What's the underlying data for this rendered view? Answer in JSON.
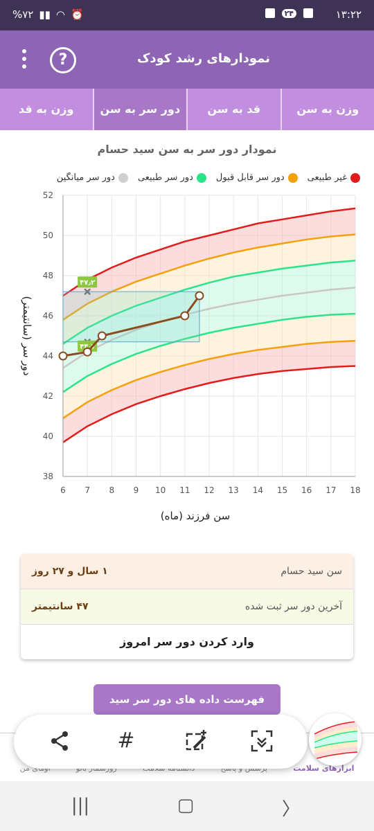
{
  "status_bar": {
    "time": "۱۳:۲۲",
    "badge": "۲۴",
    "battery": "%۷۲"
  },
  "header": {
    "title": "نمودارهای رشد کودک",
    "help_glyph": "?"
  },
  "tabs": [
    {
      "label": "وزن به سن",
      "active": false
    },
    {
      "label": "قد به سن",
      "active": false
    },
    {
      "label": "دور سر به سن",
      "active": true
    },
    {
      "label": "وزن به قد",
      "active": false
    }
  ],
  "chart_data": {
    "type": "line",
    "title": "نمودار دور سر به سن سید حسام",
    "xlabel": "سن فرزند (ماه)",
    "ylabel": "دور سر (سانتیمتر)",
    "xlim": [
      6,
      18
    ],
    "ylim": [
      38,
      52
    ],
    "x_ticks": [
      6,
      7,
      8,
      9,
      10,
      11,
      12,
      13,
      14,
      15,
      16,
      17,
      18
    ],
    "y_ticks": [
      38,
      40,
      42,
      44,
      46,
      48,
      50,
      52
    ],
    "legend": [
      {
        "name": "غیر طبیعی",
        "color": "#e21b1b"
      },
      {
        "name": "دور سر قابل قبول",
        "color": "#f5a10c"
      },
      {
        "name": "دور سر طبیعی",
        "color": "#2be389"
      },
      {
        "name": "دور سر میانگین",
        "color": "#cfcfcf"
      }
    ],
    "reference_x": [
      6,
      7,
      8,
      9,
      10,
      11,
      12,
      13,
      14,
      15,
      16,
      17,
      18
    ],
    "reference_series": [
      {
        "name": "upper_red",
        "color": "#e21b1b",
        "values": [
          47.0,
          47.8,
          48.4,
          48.9,
          49.3,
          49.7,
          50.0,
          50.3,
          50.6,
          50.8,
          51.0,
          51.2,
          51.35
        ]
      },
      {
        "name": "upper_orange",
        "color": "#f5a10c",
        "values": [
          45.8,
          46.6,
          47.2,
          47.7,
          48.1,
          48.5,
          48.85,
          49.15,
          49.4,
          49.6,
          49.8,
          49.95,
          50.05
        ]
      },
      {
        "name": "upper_green",
        "color": "#2be389",
        "values": [
          44.6,
          45.4,
          46.0,
          46.5,
          46.9,
          47.3,
          47.65,
          47.95,
          48.15,
          48.35,
          48.5,
          48.65,
          48.75
        ]
      },
      {
        "name": "median",
        "color": "#c8c8c8",
        "values": [
          43.4,
          44.2,
          44.8,
          45.3,
          45.7,
          46.05,
          46.35,
          46.6,
          46.8,
          47.0,
          47.15,
          47.3,
          47.4
        ]
      },
      {
        "name": "lower_green",
        "color": "#2be389",
        "values": [
          42.2,
          43.0,
          43.6,
          44.1,
          44.5,
          44.85,
          45.15,
          45.4,
          45.6,
          45.8,
          45.95,
          46.05,
          46.1
        ]
      },
      {
        "name": "lower_orange",
        "color": "#f5a10c",
        "values": [
          40.9,
          41.7,
          42.3,
          42.8,
          43.2,
          43.55,
          43.85,
          44.1,
          44.3,
          44.45,
          44.6,
          44.7,
          44.75
        ]
      },
      {
        "name": "lower_red",
        "color": "#e21b1b",
        "values": [
          39.7,
          40.5,
          41.1,
          41.6,
          42.0,
          42.35,
          42.65,
          42.9,
          43.1,
          43.25,
          43.35,
          43.45,
          43.5
        ]
      }
    ],
    "child_series": {
      "color": "#8b4c21",
      "points": [
        {
          "x": 6,
          "y": 44.0
        },
        {
          "x": 7,
          "y": 44.2
        },
        {
          "x": 7.6,
          "y": 45.0
        },
        {
          "x": 11,
          "y": 46.0
        },
        {
          "x": 11.6,
          "y": 47.0
        }
      ]
    },
    "markers": [
      {
        "x": 7,
        "y": 47.2,
        "label": "۴۷٫۲"
      },
      {
        "x": 7,
        "y": 44.7,
        "label": "۴۴٫۷"
      }
    ],
    "highlight_box": {
      "x_from": 6,
      "x_to": 11.6,
      "y_from": 44.7,
      "y_to": 47.2
    },
    "grid": true
  },
  "info": {
    "age_label": "سن سید حسام",
    "age_value": "۱ سال و ۲۷ روز",
    "last_label": "آخرین دور سر ثبت شده",
    "last_value": "۴۷ سانتیمتر",
    "enter_button": "وارد کردن دور سر امروز"
  },
  "list_button": "فهرست داده های دور سر سید حسام",
  "bottom_nav": [
    {
      "label": "ابزارهای سلامت",
      "active": true
    },
    {
      "label": "پرسش و پاسخ",
      "active": false
    },
    {
      "label": "دانشنامه سلامت",
      "active": false
    },
    {
      "label": "روزشمار بانو",
      "active": false
    },
    {
      "label": "اومای من",
      "active": false
    }
  ],
  "share_bar": {
    "icons": [
      "share-icon",
      "hashtag-icon",
      "edit-image-icon",
      "scan-icon"
    ]
  }
}
